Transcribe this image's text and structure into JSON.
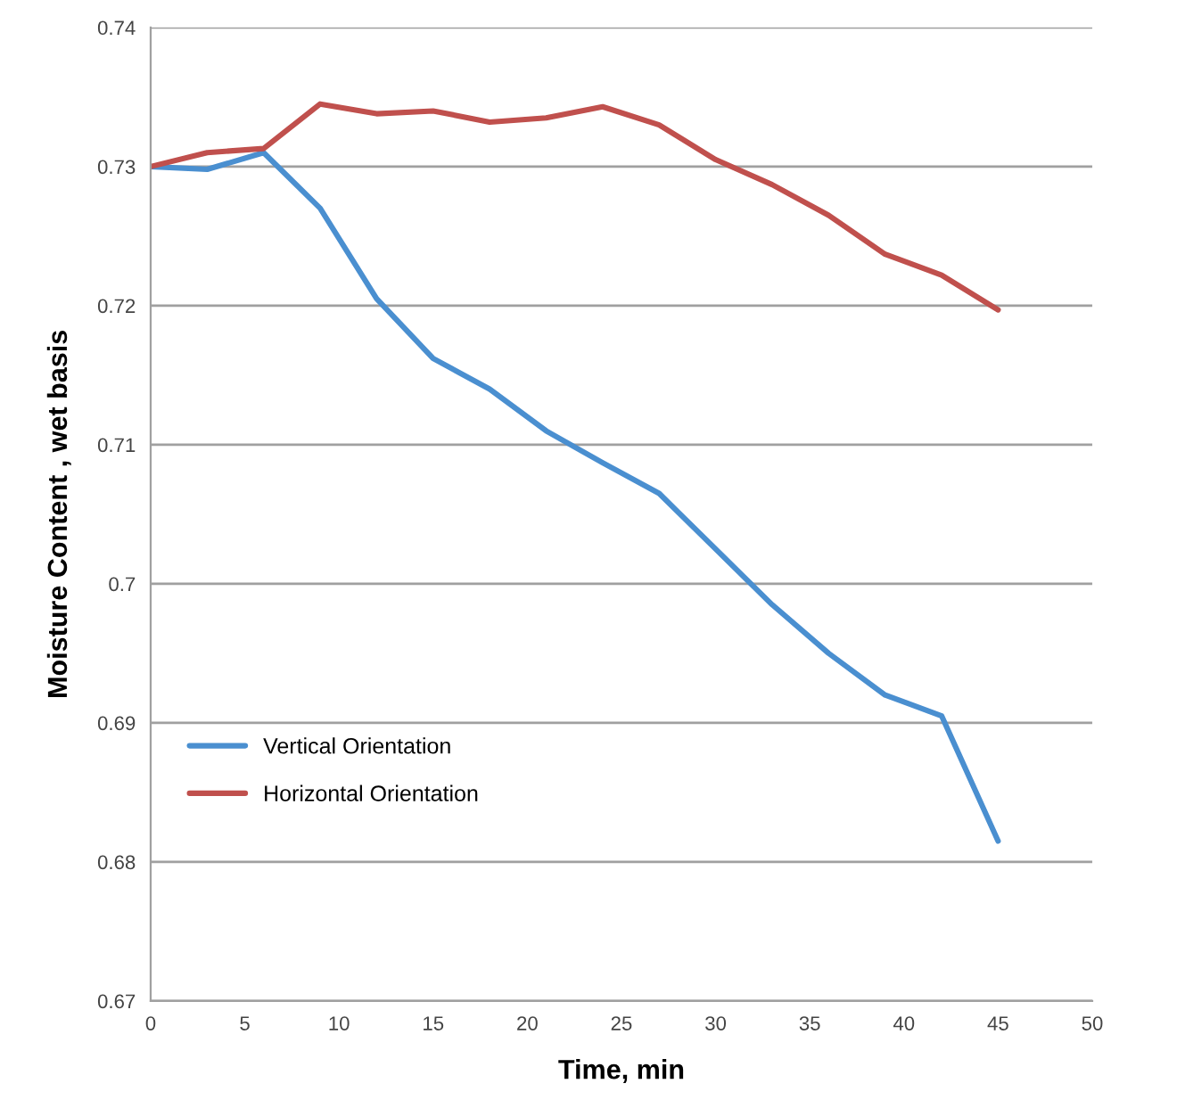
{
  "chart_data": {
    "type": "line",
    "xlabel": "Time, min",
    "ylabel": "Moisture Content , wet basis",
    "x": [
      0,
      3,
      6,
      9,
      12,
      15,
      18,
      21,
      24,
      27,
      30,
      33,
      36,
      39,
      42,
      45
    ],
    "series": [
      {
        "name": "Vertical Orientation",
        "color": "#4a8fd0",
        "values": [
          0.73,
          0.7298,
          0.731,
          0.727,
          0.7205,
          0.7162,
          0.714,
          0.711,
          0.7087,
          0.7065,
          0.7025,
          0.6985,
          0.695,
          0.692,
          0.6905,
          0.6815
        ]
      },
      {
        "name": "Horizontal Orientation",
        "color": "#c0504d",
        "values": [
          0.73,
          0.731,
          0.7313,
          0.7345,
          0.7338,
          0.734,
          0.7332,
          0.7335,
          0.7343,
          0.733,
          0.7305,
          0.7287,
          0.7265,
          0.7237,
          0.7222,
          0.7197
        ]
      }
    ],
    "xlim": [
      0,
      50
    ],
    "xticks": [
      0,
      5,
      10,
      15,
      20,
      25,
      30,
      35,
      40,
      45,
      50
    ],
    "ylim": [
      0.67,
      0.74
    ],
    "yticks": [
      0.67,
      0.68,
      0.69,
      0.7,
      0.71,
      0.72,
      0.73,
      0.74
    ],
    "grid": "y",
    "legend": "bottom left",
    "marker": "none",
    "line_style": "solid"
  }
}
